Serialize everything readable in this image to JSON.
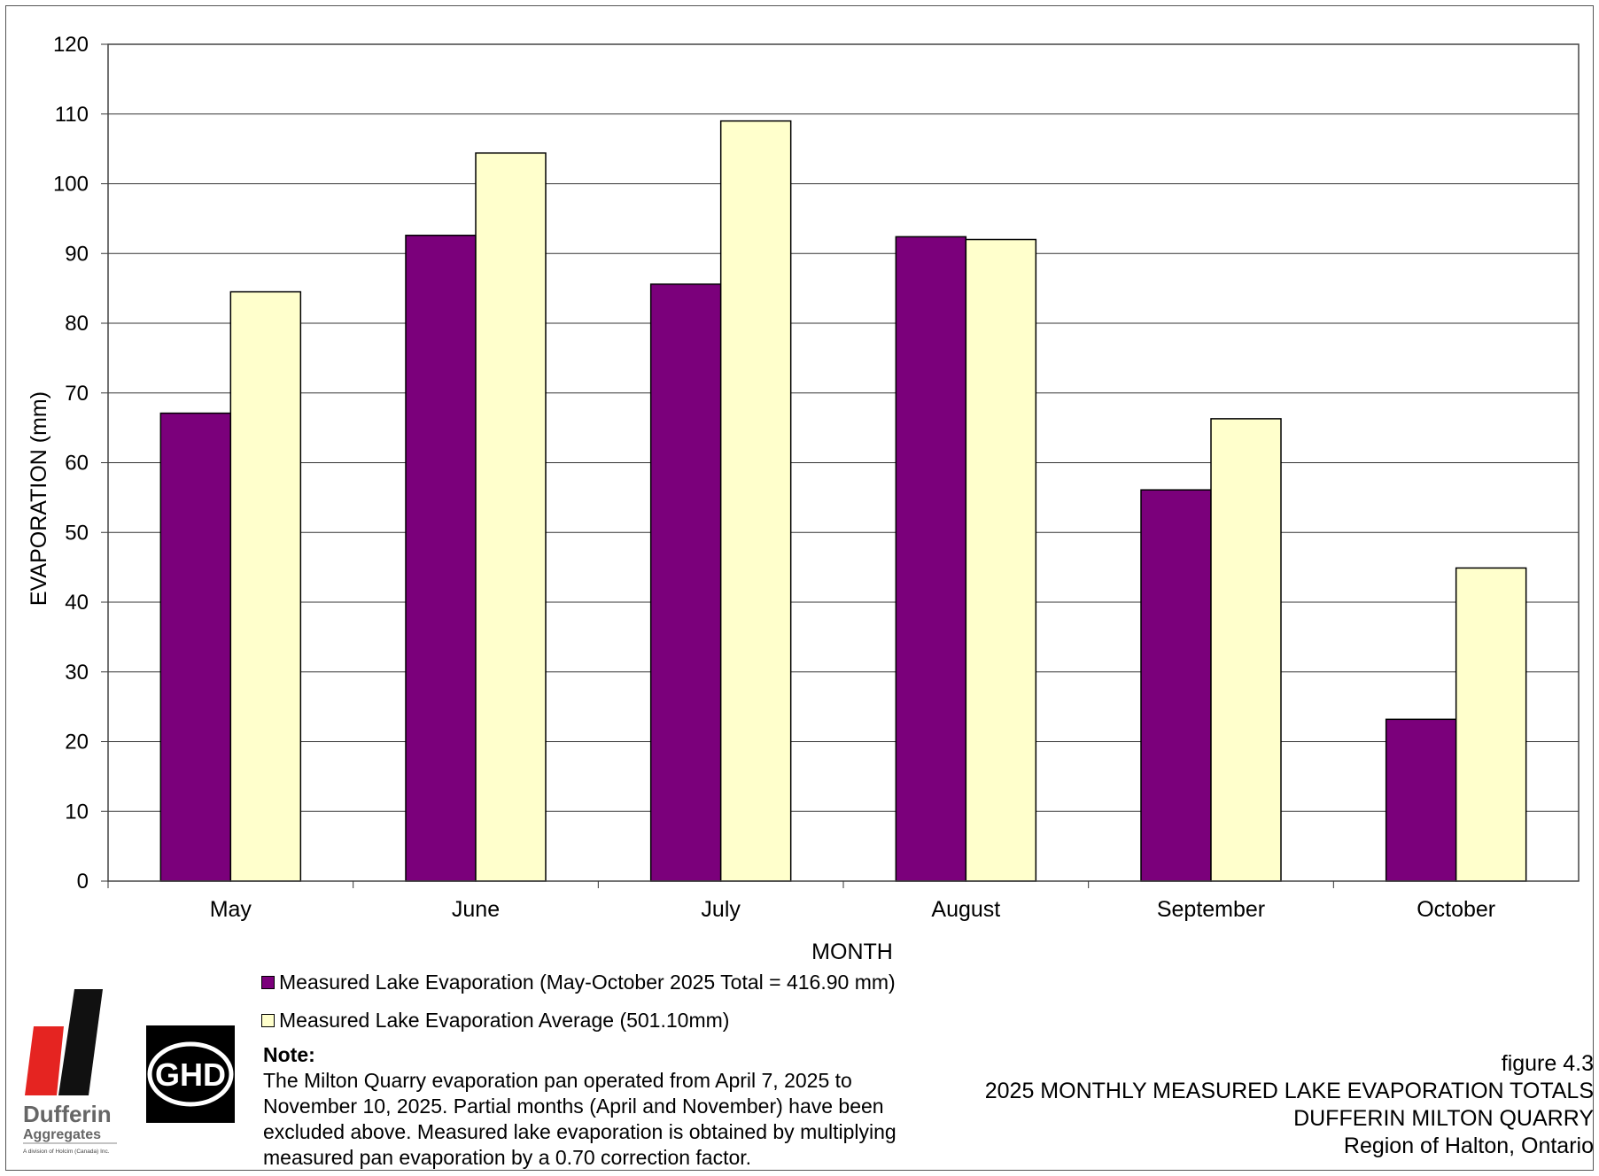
{
  "chart_data": {
    "type": "bar",
    "categories": [
      "May",
      "June",
      "July",
      "August",
      "September",
      "October"
    ],
    "series": [
      {
        "name": "Measured Lake Evaporation (May-October 2025 Total = 416.90 mm)",
        "values": [
          67.1,
          92.6,
          85.6,
          92.4,
          56.1,
          23.2
        ],
        "color": "#7b007b"
      },
      {
        "name": "Measured Lake Evaporation Average (501.10mm)",
        "values": [
          84.5,
          104.4,
          109.0,
          92.0,
          66.3,
          44.9
        ],
        "color": "#ffffcc"
      }
    ],
    "xlabel": "MONTH",
    "ylabel": "EVAPORATION (mm)",
    "ylim": [
      0,
      120
    ],
    "yticks": [
      0,
      10,
      20,
      30,
      40,
      50,
      60,
      70,
      80,
      90,
      100,
      110,
      120
    ],
    "grid": true,
    "legend_position": "bottom-left"
  },
  "note": {
    "title": "Note:",
    "text": "The Milton Quarry evaporation pan operated from April 7, 2025 to November 10, 2025. Partial months (April and November) have been excluded above. Measured lake evaporation is obtained by multiplying measured pan evaporation by a 0.70 correction factor."
  },
  "caption": {
    "figure": "figure 4.3",
    "title": "2025 MONTHLY MEASURED LAKE EVAPORATION TOTALS",
    "site": "DUFFERIN MILTON QUARRY",
    "region": "Region of Halton, Ontario"
  },
  "logos": {
    "dufferin_name": "Dufferin",
    "dufferin_sub": "Aggregates",
    "dufferin_tag": "A division of Holcim (Canada) Inc.",
    "ghd": "GHD"
  }
}
